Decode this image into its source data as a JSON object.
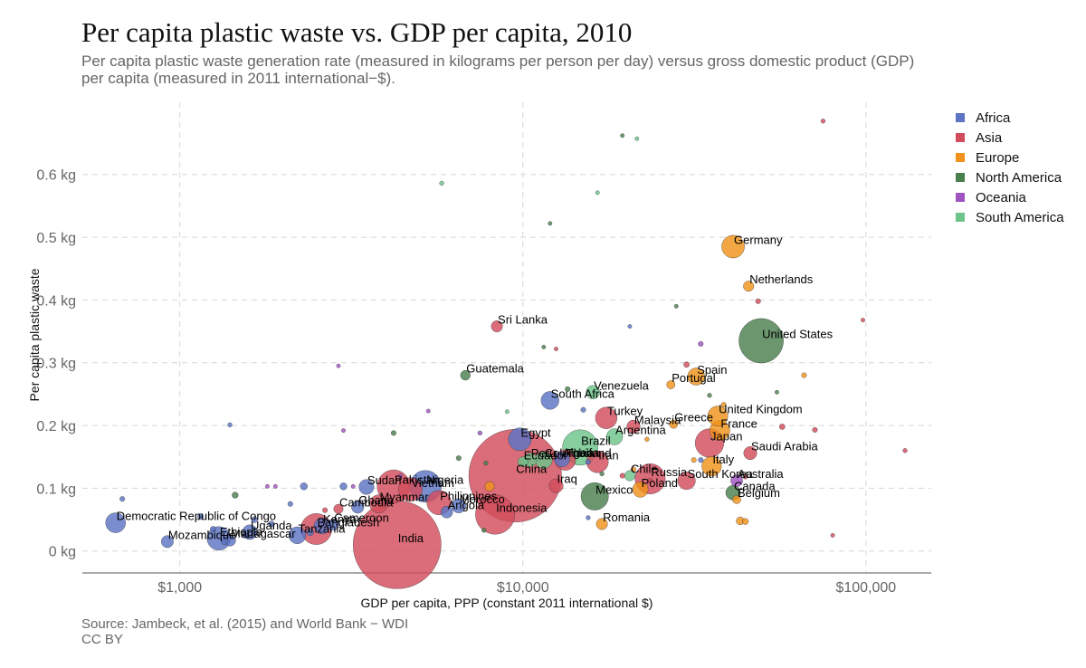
{
  "title": "Per capita plastic waste vs. GDP per capita, 2010",
  "subtitle": "Per capita plastic waste generation rate (measured in kilograms per person per day) versus gross domestic product (GDP)\n per capita (measured in 2011 international−$).",
  "caption": "Source: Jambeck, et al. (2015) and World Bank − WDI\n CC BY",
  "colors": {
    "Africa": "#5b74c4",
    "Asia": "#d24d5c",
    "Europe": "#f0921b",
    "North America": "#4a7f4e",
    "Oceania": "#a054c0",
    "South America": "#6cc48a"
  },
  "legend": [
    {
      "label": "Africa"
    },
    {
      "label": "Asia"
    },
    {
      "label": "Europe"
    },
    {
      "label": "North America"
    },
    {
      "label": "Oceania"
    },
    {
      "label": "South America"
    }
  ],
  "chart_data": {
    "type": "scatter",
    "title": "Per capita plastic waste vs. GDP per capita, 2010",
    "xlabel": "GDP per capita, PPP (constant 2011 international $)",
    "ylabel": "Per capita plastic waste",
    "x_scale": "log",
    "x_ticks": [
      {
        "value": 1000,
        "label": "$1,000"
      },
      {
        "value": 10000,
        "label": "$10,000"
      },
      {
        "value": 100000,
        "label": "$100,000"
      }
    ],
    "y_ticks": [
      {
        "value": 0,
        "label": "0 kg"
      },
      {
        "value": 0.1,
        "label": "0.1 kg"
      },
      {
        "value": 0.2,
        "label": "0.2 kg"
      },
      {
        "value": 0.3,
        "label": "0.3 kg"
      },
      {
        "value": 0.4,
        "label": "0.4 kg"
      },
      {
        "value": 0.5,
        "label": "0.5 kg"
      },
      {
        "value": 0.6,
        "label": "0.6 kg"
      }
    ],
    "xlim": [
      520,
      155000
    ],
    "ylim": [
      -0.035,
      0.715
    ],
    "grid": true,
    "legend_position": "right",
    "points": [
      {
        "label": "India",
        "region": "Asia",
        "gdp": 4300,
        "waste": 0.01,
        "size": 1205
      },
      {
        "label": "China",
        "region": "Asia",
        "gdp": 9500,
        "waste": 0.12,
        "size": 1341
      },
      {
        "label": "United States",
        "region": "North America",
        "gdp": 49500,
        "waste": 0.335,
        "size": 309
      },
      {
        "label": "Indonesia",
        "region": "Asia",
        "gdp": 8300,
        "waste": 0.058,
        "size": 241
      },
      {
        "label": "Brazil",
        "region": "South America",
        "gdp": 14700,
        "waste": 0.165,
        "size": 196
      },
      {
        "label": "Pakistan",
        "region": "Asia",
        "gdp": 4200,
        "waste": 0.103,
        "size": 170
      },
      {
        "label": "Nigeria",
        "region": "Africa",
        "gdp": 5200,
        "waste": 0.103,
        "size": 158
      },
      {
        "label": "Bangladesh",
        "region": "Asia",
        "gdp": 2500,
        "waste": 0.035,
        "size": 151
      },
      {
        "label": "Russia",
        "region": "Asia",
        "gdp": 23500,
        "waste": 0.115,
        "size": 143
      },
      {
        "label": "Japan",
        "region": "Asia",
        "gdp": 35000,
        "waste": 0.172,
        "size": 128
      },
      {
        "label": "Mexico",
        "region": "North America",
        "gdp": 16200,
        "waste": 0.087,
        "size": 118
      },
      {
        "label": "Philippines",
        "region": "Asia",
        "gdp": 5700,
        "waste": 0.077,
        "size": 93
      },
      {
        "label": "Vietnam",
        "region": "Asia",
        "gdp": 4700,
        "waste": 0.098,
        "size": 88
      },
      {
        "label": "Ethiopia",
        "region": "Africa",
        "gdp": 1300,
        "waste": 0.02,
        "size": 87
      },
      {
        "label": "Egypt",
        "region": "Africa",
        "gdp": 9800,
        "waste": 0.178,
        "size": 82
      },
      {
        "label": "Germany",
        "region": "Europe",
        "gdp": 41000,
        "waste": 0.485,
        "size": 81
      },
      {
        "label": "Turkey",
        "region": "Asia",
        "gdp": 17500,
        "waste": 0.212,
        "size": 73
      },
      {
        "label": "Iran",
        "region": "Asia",
        "gdp": 16500,
        "waste": 0.142,
        "size": 74
      },
      {
        "label": "Democratic Republic of Congo",
        "region": "Africa",
        "gdp": 650,
        "waste": 0.045,
        "size": 62
      },
      {
        "label": "Thailand",
        "region": "Asia",
        "gdp": 13300,
        "waste": 0.145,
        "size": 67
      },
      {
        "label": "France",
        "region": "Europe",
        "gdp": 37500,
        "waste": 0.192,
        "size": 63
      },
      {
        "label": "United Kingdom",
        "region": "Europe",
        "gdp": 37000,
        "waste": 0.215,
        "size": 63
      },
      {
        "label": "Italy",
        "region": "Europe",
        "gdp": 35500,
        "waste": 0.135,
        "size": 60
      },
      {
        "label": "Myanmar",
        "region": "Asia",
        "gdp": 3800,
        "waste": 0.075,
        "size": 52
      },
      {
        "label": "South Africa",
        "region": "Africa",
        "gdp": 12000,
        "waste": 0.24,
        "size": 50
      },
      {
        "label": "South Korea",
        "region": "Asia",
        "gdp": 30000,
        "waste": 0.112,
        "size": 49
      },
      {
        "label": "Colombia",
        "region": "South America",
        "gdp": 11500,
        "waste": 0.145,
        "size": 46
      },
      {
        "label": "Spain",
        "region": "Europe",
        "gdp": 32000,
        "waste": 0.278,
        "size": 46
      },
      {
        "label": "Tanzania",
        "region": "Africa",
        "gdp": 2200,
        "waste": 0.025,
        "size": 45
      },
      {
        "label": "Kenya",
        "region": "Africa",
        "gdp": 2600,
        "waste": 0.04,
        "size": 41
      },
      {
        "label": "Argentina",
        "region": "South America",
        "gdp": 18500,
        "waste": 0.182,
        "size": 41
      },
      {
        "label": "Poland",
        "region": "Europe",
        "gdp": 22000,
        "waste": 0.098,
        "size": 38
      },
      {
        "label": "Sudan",
        "region": "Africa",
        "gdp": 3500,
        "waste": 0.102,
        "size": 35
      },
      {
        "label": "Algeria",
        "region": "Africa",
        "gdp": 13000,
        "waste": 0.146,
        "size": 36
      },
      {
        "label": "Canada",
        "region": "North America",
        "gdp": 41000,
        "waste": 0.093,
        "size": 34
      },
      {
        "label": "Uganda",
        "region": "Africa",
        "gdp": 1600,
        "waste": 0.03,
        "size": 34
      },
      {
        "label": "Iraq",
        "region": "Asia",
        "gdp": 12500,
        "waste": 0.104,
        "size": 31
      },
      {
        "label": "Morocco",
        "region": "Africa",
        "gdp": 6500,
        "waste": 0.072,
        "size": 32
      },
      {
        "label": "Venezuela",
        "region": "South America",
        "gdp": 16000,
        "waste": 0.253,
        "size": 29
      },
      {
        "label": "Malaysia",
        "region": "Asia",
        "gdp": 21000,
        "waste": 0.198,
        "size": 28
      },
      {
        "label": "Peru",
        "region": "South America",
        "gdp": 10500,
        "waste": 0.145,
        "size": 29
      },
      {
        "label": "Saudi Arabia",
        "region": "Asia",
        "gdp": 46000,
        "waste": 0.156,
        "size": 27
      },
      {
        "label": "Mozambique",
        "region": "Africa",
        "gdp": 920,
        "waste": 0.015,
        "size": 23
      },
      {
        "label": "Ghana",
        "region": "Africa",
        "gdp": 3300,
        "waste": 0.07,
        "size": 24
      },
      {
        "label": "Madagascar",
        "region": "Africa",
        "gdp": 1400,
        "waste": 0.017,
        "size": 21
      },
      {
        "label": "Cameroon",
        "region": "Africa",
        "gdp": 2800,
        "waste": 0.042,
        "size": 20
      },
      {
        "label": "Australia",
        "region": "Oceania",
        "gdp": 42000,
        "waste": 0.112,
        "size": 22
      },
      {
        "label": "Sri Lanka",
        "region": "Asia",
        "gdp": 8400,
        "waste": 0.358,
        "size": 20
      },
      {
        "label": "Romania",
        "region": "Europe",
        "gdp": 17000,
        "waste": 0.043,
        "size": 20
      },
      {
        "label": "Netherlands",
        "region": "Europe",
        "gdp": 45500,
        "waste": 0.422,
        "size": 17
      },
      {
        "label": "Chile",
        "region": "South America",
        "gdp": 20500,
        "waste": 0.12,
        "size": 17
      },
      {
        "label": "Ecuador",
        "region": "South America",
        "gdp": 10000,
        "waste": 0.142,
        "size": 16
      },
      {
        "label": "Guatemala",
        "region": "North America",
        "gdp": 6800,
        "waste": 0.28,
        "size": 15
      },
      {
        "label": "Cambodia",
        "region": "Asia",
        "gdp": 2900,
        "waste": 0.067,
        "size": 14
      },
      {
        "label": "Belgium",
        "region": "Europe",
        "gdp": 42000,
        "waste": 0.082,
        "size": 11
      },
      {
        "label": "Greece",
        "region": "Europe",
        "gdp": 27500,
        "waste": 0.202,
        "size": 11
      },
      {
        "label": "Portugal",
        "region": "Europe",
        "gdp": 27000,
        "waste": 0.265,
        "size": 11
      },
      {
        "label": "Angola",
        "region": "Africa",
        "gdp": 6000,
        "waste": 0.062,
        "size": 22
      },
      {
        "label": "",
        "region": "Asia",
        "gdp": 75000,
        "waste": 0.685,
        "size": 3
      },
      {
        "label": "",
        "region": "North America",
        "gdp": 19500,
        "waste": 0.662,
        "size": 2
      },
      {
        "label": "",
        "region": "South America",
        "gdp": 21500,
        "waste": 0.657,
        "size": 2
      },
      {
        "label": "",
        "region": "South America",
        "gdp": 5800,
        "waste": 0.586,
        "size": 3
      },
      {
        "label": "",
        "region": "South America",
        "gdp": 16500,
        "waste": 0.571,
        "size": 2
      },
      {
        "label": "",
        "region": "North America",
        "gdp": 12000,
        "waste": 0.522,
        "size": 2
      },
      {
        "label": "",
        "region": "Asia",
        "gdp": 48500,
        "waste": 0.398,
        "size": 4
      },
      {
        "label": "",
        "region": "North America",
        "gdp": 28000,
        "waste": 0.39,
        "size": 2
      },
      {
        "label": "",
        "region": "Asia",
        "gdp": 98000,
        "waste": 0.368,
        "size": 2
      },
      {
        "label": "",
        "region": "Africa",
        "gdp": 20500,
        "waste": 0.358,
        "size": 2
      },
      {
        "label": "",
        "region": "Oceania",
        "gdp": 33000,
        "waste": 0.33,
        "size": 4
      },
      {
        "label": "",
        "region": "North America",
        "gdp": 11500,
        "waste": 0.325,
        "size": 2
      },
      {
        "label": "",
        "region": "Asia",
        "gdp": 12500,
        "waste": 0.322,
        "size": 2
      },
      {
        "label": "",
        "region": "Asia",
        "gdp": 30000,
        "waste": 0.297,
        "size": 5
      },
      {
        "label": "",
        "region": "Oceania",
        "gdp": 2900,
        "waste": 0.295,
        "size": 2
      },
      {
        "label": "",
        "region": "Europe",
        "gdp": 66000,
        "waste": 0.28,
        "size": 4
      },
      {
        "label": "",
        "region": "North America",
        "gdp": 13500,
        "waste": 0.258,
        "size": 4
      },
      {
        "label": "",
        "region": "North America",
        "gdp": 35000,
        "waste": 0.248,
        "size": 3
      },
      {
        "label": "",
        "region": "North America",
        "gdp": 55000,
        "waste": 0.253,
        "size": 2
      },
      {
        "label": "",
        "region": "Europe",
        "gdp": 38500,
        "waste": 0.233,
        "size": 4
      },
      {
        "label": "",
        "region": "Africa",
        "gdp": 15000,
        "waste": 0.225,
        "size": 4
      },
      {
        "label": "",
        "region": "Oceania",
        "gdp": 5300,
        "waste": 0.223,
        "size": 2
      },
      {
        "label": "",
        "region": "South America",
        "gdp": 9000,
        "waste": 0.222,
        "size": 2
      },
      {
        "label": "",
        "region": "Africa",
        "gdp": 1400,
        "waste": 0.201,
        "size": 3
      },
      {
        "label": "",
        "region": "Asia",
        "gdp": 57000,
        "waste": 0.198,
        "size": 5
      },
      {
        "label": "",
        "region": "Asia",
        "gdp": 71000,
        "waste": 0.193,
        "size": 4
      },
      {
        "label": "",
        "region": "Oceania",
        "gdp": 3000,
        "waste": 0.192,
        "size": 2
      },
      {
        "label": "",
        "region": "North America",
        "gdp": 4200,
        "waste": 0.188,
        "size": 4
      },
      {
        "label": "",
        "region": "Oceania",
        "gdp": 7500,
        "waste": 0.188,
        "size": 3
      },
      {
        "label": "",
        "region": "Europe",
        "gdp": 23000,
        "waste": 0.178,
        "size": 3
      },
      {
        "label": "",
        "region": "Asia",
        "gdp": 130000,
        "waste": 0.16,
        "size": 3
      },
      {
        "label": "",
        "region": "North America",
        "gdp": 6500,
        "waste": 0.148,
        "size": 4
      },
      {
        "label": "",
        "region": "Europe",
        "gdp": 31500,
        "waste": 0.145,
        "size": 4
      },
      {
        "label": "",
        "region": "Africa",
        "gdp": 33000,
        "waste": 0.145,
        "size": 4
      },
      {
        "label": "",
        "region": "Africa",
        "gdp": 15500,
        "waste": 0.142,
        "size": 4
      },
      {
        "label": "",
        "region": "North America",
        "gdp": 7800,
        "waste": 0.14,
        "size": 3
      },
      {
        "label": "",
        "region": "Europe",
        "gdp": 21000,
        "waste": 0.13,
        "size": 4
      },
      {
        "label": "",
        "region": "North America",
        "gdp": 17000,
        "waste": 0.123,
        "size": 3
      },
      {
        "label": "",
        "region": "Asia",
        "gdp": 19500,
        "waste": 0.12,
        "size": 4
      },
      {
        "label": "",
        "region": "Asia",
        "gdp": 44500,
        "waste": 0.118,
        "size": 3
      },
      {
        "label": "",
        "region": "Oceania",
        "gdp": 4400,
        "waste": 0.12,
        "size": 2
      },
      {
        "label": "",
        "region": "Asia",
        "gdp": 23500,
        "waste": 0.112,
        "size": 4
      },
      {
        "label": "",
        "region": "Europe",
        "gdp": 8000,
        "waste": 0.103,
        "size": 14
      },
      {
        "label": "",
        "region": "Africa",
        "gdp": 3000,
        "waste": 0.103,
        "size": 8
      },
      {
        "label": "",
        "region": "Africa",
        "gdp": 2300,
        "waste": 0.103,
        "size": 8
      },
      {
        "label": "",
        "region": "Oceania",
        "gdp": 1800,
        "waste": 0.103,
        "size": 2
      },
      {
        "label": "",
        "region": "Oceania",
        "gdp": 1900,
        "waste": 0.103,
        "size": 2
      },
      {
        "label": "",
        "region": "Oceania",
        "gdp": 3200,
        "waste": 0.103,
        "size": 2
      },
      {
        "label": "",
        "region": "North America",
        "gdp": 1450,
        "waste": 0.089,
        "size": 6
      },
      {
        "label": "",
        "region": "Africa",
        "gdp": 680,
        "waste": 0.083,
        "size": 4
      },
      {
        "label": "",
        "region": "Asia",
        "gdp": 2650,
        "waste": 0.065,
        "size": 4
      },
      {
        "label": "",
        "region": "Africa",
        "gdp": 1150,
        "waste": 0.055,
        "size": 6
      },
      {
        "label": "",
        "region": "Africa",
        "gdp": 1650,
        "waste": 0.05,
        "size": 6
      },
      {
        "label": "",
        "region": "Africa",
        "gdp": 1850,
        "waste": 0.043,
        "size": 6
      },
      {
        "label": "",
        "region": "Africa",
        "gdp": 1250,
        "waste": 0.035,
        "size": 5
      },
      {
        "label": "",
        "region": "Africa",
        "gdp": 1550,
        "waste": 0.025,
        "size": 5
      },
      {
        "label": "",
        "region": "Africa",
        "gdp": 1350,
        "waste": 0.015,
        "size": 6
      },
      {
        "label": "",
        "region": "Africa",
        "gdp": 2400,
        "waste": 0.03,
        "size": 8
      },
      {
        "label": "",
        "region": "Africa",
        "gdp": 15500,
        "waste": 0.053,
        "size": 3
      },
      {
        "label": "",
        "region": "Europe",
        "gdp": 43000,
        "waste": 0.048,
        "size": 10
      },
      {
        "label": "",
        "region": "Europe",
        "gdp": 44500,
        "waste": 0.047,
        "size": 6
      },
      {
        "label": "",
        "region": "Asia",
        "gdp": 80000,
        "waste": 0.025,
        "size": 2
      },
      {
        "label": "",
        "region": "North America",
        "gdp": 7700,
        "waste": 0.033,
        "size": 3
      },
      {
        "label": "",
        "region": "Africa",
        "gdp": 2100,
        "waste": 0.075,
        "size": 4
      }
    ]
  }
}
